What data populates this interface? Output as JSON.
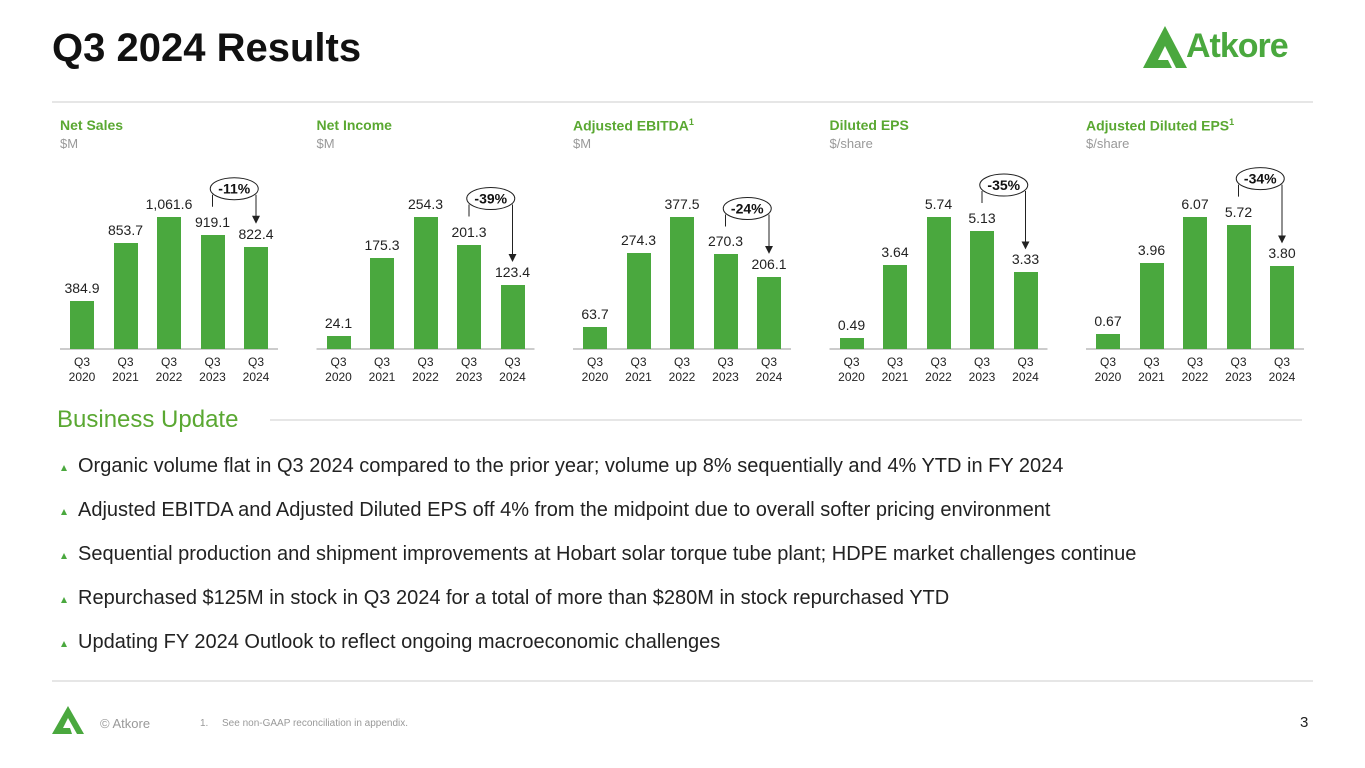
{
  "header": {
    "title": "Q3 2024 Results",
    "logo": "Atkore"
  },
  "chart_data": [
    {
      "type": "bar",
      "title": "Net Sales",
      "subtitle": "$M",
      "color": "#4aa83e",
      "categories": [
        "Q3 2020",
        "Q3 2021",
        "Q3 2022",
        "Q3 2023",
        "Q3 2024"
      ],
      "values": [
        384.9,
        853.7,
        1061.6,
        919.1,
        822.4
      ],
      "value_labels": [
        "384.9",
        "853.7",
        "1,061.6",
        "919.1",
        "822.4"
      ],
      "annotation": "-11%"
    },
    {
      "type": "bar",
      "title": "Net Income",
      "subtitle": "$M",
      "color": "#4aa83e",
      "categories": [
        "Q3 2020",
        "Q3 2021",
        "Q3 2022",
        "Q3 2023",
        "Q3 2024"
      ],
      "values": [
        24.1,
        175.3,
        254.3,
        201.3,
        123.4
      ],
      "value_labels": [
        "24.1",
        "175.3",
        "254.3",
        "201.3",
        "123.4"
      ],
      "annotation": "-39%"
    },
    {
      "type": "bar",
      "title": "Adjusted EBITDA",
      "title_note": "1",
      "subtitle": "$M",
      "color": "#4aa83e",
      "categories": [
        "Q3 2020",
        "Q3 2021",
        "Q3 2022",
        "Q3 2023",
        "Q3 2024"
      ],
      "values": [
        63.7,
        274.3,
        377.5,
        270.3,
        206.1
      ],
      "value_labels": [
        "63.7",
        "274.3",
        "377.5",
        "270.3",
        "206.1"
      ],
      "annotation": "-24%"
    },
    {
      "type": "bar",
      "title": "Diluted EPS",
      "subtitle": "$/share",
      "color": "#4aa83e",
      "categories": [
        "Q3 2020",
        "Q3 2021",
        "Q3 2022",
        "Q3 2023",
        "Q3 2024"
      ],
      "values": [
        0.49,
        3.64,
        5.74,
        5.13,
        3.33
      ],
      "value_labels": [
        "0.49",
        "3.64",
        "5.74",
        "5.13",
        "3.33"
      ],
      "annotation": "-35%"
    },
    {
      "type": "bar",
      "title": "Adjusted Diluted EPS",
      "title_note": "1",
      "subtitle": "$/share",
      "color": "#4aa83e",
      "categories": [
        "Q3 2020",
        "Q3 2021",
        "Q3 2022",
        "Q3 2023",
        "Q3 2024"
      ],
      "values": [
        0.67,
        3.96,
        6.07,
        5.72,
        3.8
      ],
      "value_labels": [
        "0.67",
        "3.96",
        "6.07",
        "5.72",
        "3.80"
      ],
      "annotation": "-34%"
    }
  ],
  "business_update": {
    "heading": "Business Update",
    "bullets": [
      "Organic volume flat in Q3 2024 compared to the prior year; volume up 8% sequentially and 4% YTD in FY 2024",
      "Adjusted EBITDA and Adjusted Diluted EPS off 4% from the midpoint due to overall softer pricing environment",
      "Sequential production and shipment improvements at Hobart solar torque tube plant; HDPE market challenges continue",
      "Repurchased $125M in stock in Q3 2024 for a total of more than $280M in stock repurchased YTD",
      "Updating FY 2024 Outlook to reflect ongoing macroeconomic challenges"
    ]
  },
  "footer": {
    "copyright": "© Atkore",
    "note_number": "1.",
    "note": "See non-GAAP reconciliation in appendix.",
    "page": "3"
  }
}
